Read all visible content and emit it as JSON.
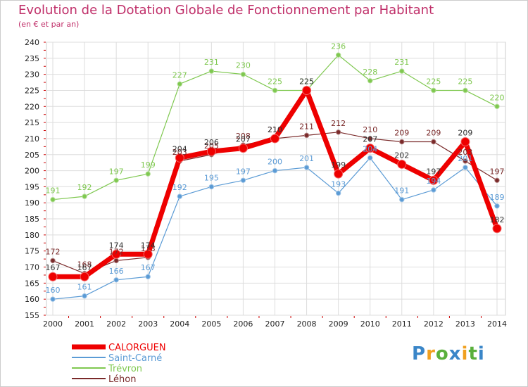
{
  "chart_data": {
    "type": "line",
    "title": "Evolution de la Dotation Globale de Fonctionnement par Habitant",
    "subtitle": "(en € et par an)",
    "x": [
      "2000",
      "2001",
      "2002",
      "2003",
      "2004",
      "2005",
      "2006",
      "2007",
      "2008",
      "2009",
      "2010",
      "2011",
      "2012",
      "2013",
      "2014"
    ],
    "ylim": [
      155,
      240
    ],
    "yticks": [
      155,
      160,
      165,
      170,
      175,
      180,
      185,
      190,
      195,
      200,
      205,
      210,
      215,
      220,
      225,
      230,
      235,
      240
    ],
    "grid": true,
    "legend_position": "bottom-left",
    "series": [
      {
        "name": "Trévron",
        "color": "#7fc850",
        "values": [
          191,
          192,
          197,
          199,
          227,
          231,
          230,
          225,
          225,
          236,
          228,
          231,
          225,
          225,
          220
        ]
      },
      {
        "name": "Saint-Carné",
        "color": "#5b9bd5",
        "values": [
          160,
          161,
          166,
          167,
          192,
          195,
          197,
          200,
          201,
          193,
          204,
          191,
          194,
          201,
          189
        ]
      },
      {
        "name": "Léhon",
        "color": "#7a2a2a",
        "values": [
          172,
          168,
          172,
          173,
          203,
          205,
          208,
          210,
          211,
          212,
          210,
          209,
          209,
          203,
          197
        ]
      },
      {
        "name": "CALORGUEN",
        "color": "#ee0000",
        "values": [
          167,
          167,
          174,
          174,
          204,
          206,
          207,
          210,
          225,
          199,
          207,
          202,
          197,
          209,
          182
        ]
      }
    ],
    "legend_order": [
      "CALORGUEN",
      "Saint-Carné",
      "Trévron",
      "Léhon"
    ]
  },
  "logo": {
    "text": "Proxiti"
  }
}
